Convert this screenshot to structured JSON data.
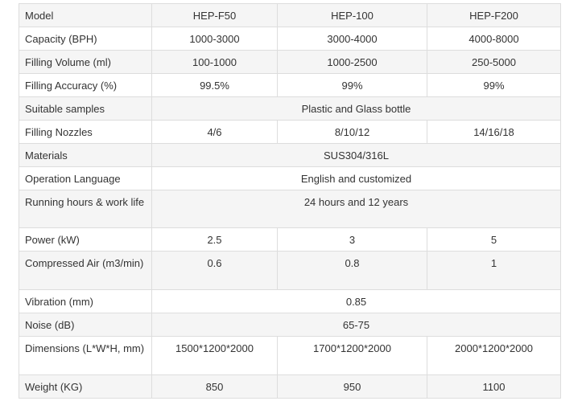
{
  "header": [
    "Model",
    "HEP-F50",
    "HEP-100",
    "HEP-F200"
  ],
  "rows": [
    {
      "label": "Capacity (BPH)",
      "values": [
        "1000-3000",
        "3000-4000",
        "4000-8000"
      ]
    },
    {
      "label": "Filling Volume (ml)",
      "values": [
        "100-1000",
        "1000-2500",
        "250-5000"
      ]
    },
    {
      "label": "Filling Accuracy (%)",
      "values": [
        "99.5%",
        "99%",
        "99%"
      ]
    },
    {
      "label": "Suitable samples",
      "value": "Plastic and Glass bottle"
    },
    {
      "label": "Filling Nozzles",
      "values": [
        "4/6",
        "8/10/12",
        "14/16/18"
      ]
    },
    {
      "label": "Materials",
      "value": "SUS304/316L"
    },
    {
      "label": "Operation Language",
      "value": "English and customized"
    },
    {
      "label": "Running hours & work life",
      "value": "24 hours and 12 years"
    },
    {
      "label": "Power (kW)",
      "values": [
        "2.5",
        "3",
        "5"
      ]
    },
    {
      "label": "Compressed Air (m3/min)",
      "values": [
        "0.6",
        "0.8",
        "1"
      ]
    },
    {
      "label": "Vibration (mm)",
      "value": "0.85"
    },
    {
      "label": "Noise (dB)",
      "value": "65-75"
    },
    {
      "label": "Dimensions (L*W*H, mm)",
      "values": [
        "1500*1200*2000",
        "1700*1200*2000",
        "2000*1200*2000"
      ]
    },
    {
      "label": "Weight (KG)",
      "values": [
        "850",
        "950",
        "1100"
      ]
    }
  ]
}
